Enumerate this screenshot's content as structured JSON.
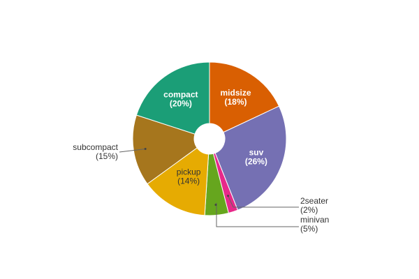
{
  "chart_data": {
    "type": "pie",
    "donut": true,
    "slices": [
      {
        "label": "midsize",
        "value": 18,
        "percent_label": "(18%)",
        "color": "#D95F02"
      },
      {
        "label": "suv",
        "value": 26,
        "percent_label": "(26%)",
        "color": "#7570B3"
      },
      {
        "label": "2seater",
        "value": 2,
        "percent_label": "(2%)",
        "color": "#E7298A"
      },
      {
        "label": "minivan",
        "value": 5,
        "percent_label": "(5%)",
        "color": "#66A61E"
      },
      {
        "label": "pickup",
        "value": 14,
        "percent_label": "(14%)",
        "color": "#E6AB02"
      },
      {
        "label": "subcompact",
        "value": 15,
        "percent_label": "(15%)",
        "color": "#A6761D"
      },
      {
        "label": "compact",
        "value": 20,
        "percent_label": "(20%)",
        "color": "#1B9E77"
      }
    ]
  }
}
